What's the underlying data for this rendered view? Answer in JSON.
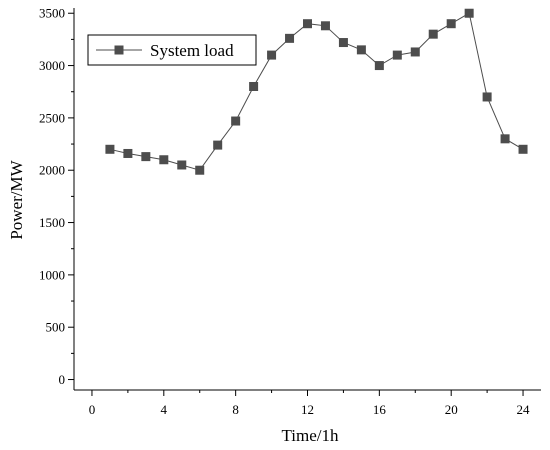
{
  "chart_data": {
    "type": "line",
    "xlabel": "Time/1h",
    "ylabel": "Power/MW",
    "xlim": [
      -1,
      25
    ],
    "ylim": [
      -100,
      3550
    ],
    "xticks": [
      0,
      4,
      8,
      12,
      16,
      20,
      24
    ],
    "xtick_labels": [
      "0",
      "4",
      "8",
      "12",
      "16",
      "20",
      "24"
    ],
    "yticks": [
      0,
      500,
      1000,
      1500,
      2000,
      2500,
      3000,
      3500
    ],
    "ytick_labels": [
      "0",
      "500",
      "1000",
      "1500",
      "2000",
      "2500",
      "3000",
      "3500"
    ],
    "grid": false,
    "legend_position": "top-left",
    "series": [
      {
        "name": "System load",
        "color": "#4d4d4d",
        "marker": "square",
        "x": [
          1,
          2,
          3,
          4,
          5,
          6,
          7,
          8,
          9,
          10,
          11,
          12,
          13,
          14,
          15,
          16,
          17,
          18,
          19,
          20,
          21,
          22,
          23,
          24
        ],
        "y": [
          2200,
          2160,
          2130,
          2100,
          2050,
          2000,
          2240,
          2470,
          2800,
          3100,
          3260,
          3400,
          3380,
          3220,
          3150,
          3000,
          3100,
          3130,
          3300,
          3400,
          3500,
          2700,
          2300,
          2200
        ]
      }
    ]
  }
}
